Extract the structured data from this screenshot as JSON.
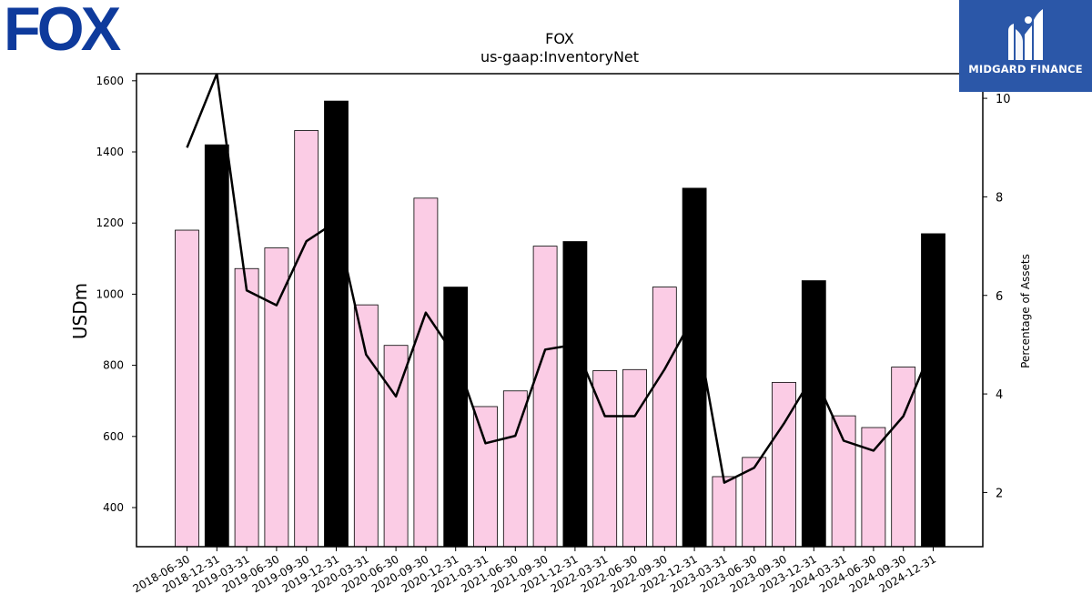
{
  "logos": {
    "left": "FOX",
    "right": "MIDGARD FINANCE"
  },
  "colors": {
    "bar_light": "#fbcce5",
    "bar_dark": "#000000",
    "line": "#000000",
    "logo_fox": "#0e3a9c",
    "logo_midgard_bg": "#2b57a8"
  },
  "chart_data": {
    "type": "bar",
    "title": "FOX",
    "subtitle": "us-gaap:InventoryNet",
    "ylabel": "USDm",
    "y2label": "Percentage of Assets",
    "ylim": [
      290,
      1620
    ],
    "y2lim": [
      0.9,
      10.5
    ],
    "yticks": [
      400,
      600,
      800,
      1000,
      1200,
      1400,
      1600
    ],
    "y2ticks": [
      2,
      4,
      6,
      8,
      10
    ],
    "grid": false,
    "categories": [
      "2018-06-30",
      "2018-12-31",
      "2019-03-31",
      "2019-06-30",
      "2019-09-30",
      "2019-12-31",
      "2020-03-31",
      "2020-06-30",
      "2020-09-30",
      "2020-12-31",
      "2021-03-31",
      "2021-06-30",
      "2021-09-30",
      "2021-12-31",
      "2022-03-31",
      "2022-06-30",
      "2022-09-30",
      "2022-12-31",
      "2023-03-31",
      "2023-06-30",
      "2023-09-30",
      "2023-12-31",
      "2024-03-31",
      "2024-06-30",
      "2024-09-30",
      "2024-12-31"
    ],
    "series": [
      {
        "type": "bar",
        "values": [
          1180,
          1420,
          1072,
          1130,
          1460,
          1543,
          970,
          856,
          1270,
          1020,
          684,
          728,
          1135,
          1148,
          785,
          788,
          1020,
          1298,
          487,
          541,
          752,
          1038,
          658,
          625,
          795,
          1170
        ],
        "dark": [
          false,
          true,
          false,
          false,
          false,
          true,
          false,
          false,
          false,
          true,
          false,
          false,
          false,
          true,
          false,
          false,
          false,
          true,
          false,
          false,
          false,
          true,
          false,
          false,
          false,
          true
        ]
      },
      {
        "type": "line",
        "axis": "right",
        "values": [
          9.0,
          10.5,
          6.1,
          5.8,
          7.1,
          7.5,
          4.8,
          3.95,
          5.65,
          4.75,
          3.0,
          3.15,
          4.9,
          5.0,
          3.55,
          3.55,
          4.5,
          5.6,
          2.2,
          2.5,
          3.4,
          4.4,
          3.05,
          2.85,
          3.55,
          5.0
        ]
      }
    ]
  }
}
